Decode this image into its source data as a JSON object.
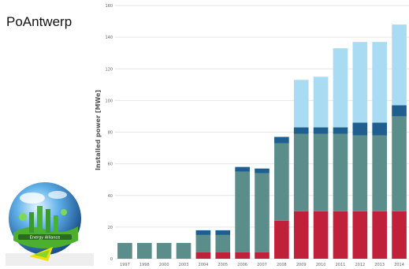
{
  "page": {
    "caption": "PoAntwerp",
    "logo_label": "Energy Alliance"
  },
  "colors": {
    "dark_red": "#c0203a",
    "teal": "#5b8e8a",
    "dark_blue": "#1f5f8f",
    "light_blue": "#a9dcf2",
    "grid": "#e6e6e6",
    "axis_text": "#666666"
  },
  "chart_data": {
    "type": "bar",
    "stacked": true,
    "categories": [
      "1997",
      "1998",
      "2000",
      "2003",
      "2004",
      "2005",
      "2006",
      "2007",
      "2008",
      "2009",
      "2010",
      "2011",
      "2012",
      "2013",
      "2014"
    ],
    "series": [
      {
        "color": "#c0203a",
        "values": [
          0,
          0,
          0,
          0,
          4,
          4,
          4,
          4,
          24,
          30,
          30,
          30,
          30,
          30,
          30
        ]
      },
      {
        "color": "#5b8e8a",
        "values": [
          10,
          10,
          10,
          10,
          11,
          11,
          51,
          50,
          49,
          49,
          49,
          49,
          48,
          48,
          60
        ]
      },
      {
        "color": "#1f5f8f",
        "values": [
          0,
          0,
          0,
          0,
          3,
          3,
          3,
          3,
          4,
          4,
          4,
          4,
          8,
          8,
          7
        ]
      },
      {
        "color": "#a9dcf2",
        "values": [
          0,
          0,
          0,
          0,
          0,
          0,
          0,
          0,
          0,
          30,
          32,
          50,
          51,
          51,
          51
        ]
      }
    ],
    "ylabel": "Installed power [MWe]",
    "ylim": [
      0,
      160
    ],
    "yticks": [
      0,
      20,
      40,
      60,
      80,
      100,
      120,
      140,
      160
    ],
    "grid": true
  }
}
